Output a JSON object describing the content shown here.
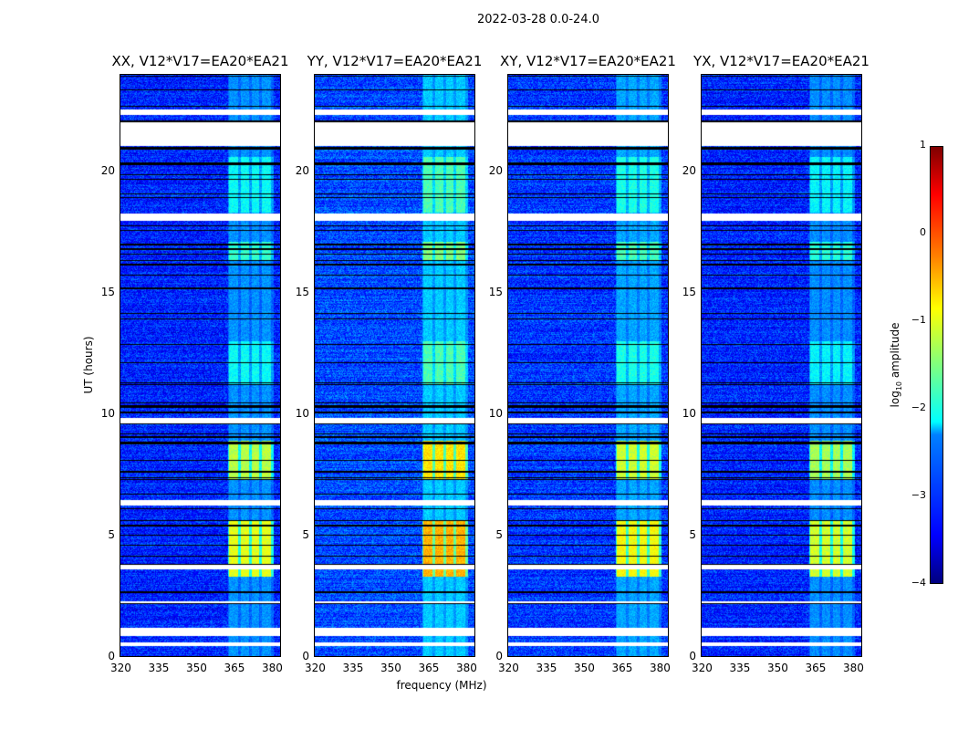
{
  "chart_data": {
    "type": "heatmap",
    "title": "2022-03-28 0.0-24.0",
    "xlabel": "frequency (MHz)",
    "ylabel": "UT (hours)",
    "xlim": [
      320,
      384
    ],
    "ylim": [
      0,
      24
    ],
    "xticks": [
      "320",
      "335",
      "350",
      "365",
      "380"
    ],
    "yticks": [
      "0",
      "5",
      "10",
      "15",
      "20"
    ],
    "colormap": "jet",
    "colorbar": {
      "label": "log",
      "label_sub": "10",
      "label_suffix": " amplitude",
      "range": [
        -4,
        1
      ],
      "ticks": [
        "1",
        "0",
        "−1",
        "−2",
        "−3",
        "−4"
      ]
    },
    "panels": [
      {
        "title": "XX, V12*V17=EA20*EA21",
        "background": -3.2,
        "band_peak": -1.0
      },
      {
        "title": "YY, V12*V17=EA20*EA21",
        "background": -3.0,
        "band_peak": -0.5
      },
      {
        "title": "XY, V12*V17=EA20*EA21",
        "background": -3.1,
        "band_peak": -0.9
      },
      {
        "title": "YX, V12*V17=EA20*EA21",
        "background": -3.2,
        "band_peak": -1.1
      }
    ],
    "flagged_hours": [
      [
        22.3,
        22.55
      ],
      [
        21.05,
        22.0
      ],
      [
        17.95,
        18.25
      ],
      [
        9.6,
        9.85
      ],
      [
        6.25,
        6.45
      ],
      [
        3.6,
        3.8
      ],
      [
        2.2,
        2.3
      ],
      [
        0.85,
        1.2
      ],
      [
        0.45,
        0.6
      ]
    ],
    "rfi_band_mhz": [
      363,
      381
    ],
    "rfi_subbands_mhz": [
      [
        363.5,
        367
      ],
      [
        368,
        371.5
      ],
      [
        372.5,
        375.5
      ],
      [
        376.5,
        380
      ]
    ],
    "rfi_active_hours": [
      [
        3.3,
        5.6,
        1.0
      ],
      [
        7.3,
        8.9,
        0.9
      ],
      [
        11.2,
        13.0,
        0.5
      ],
      [
        16.3,
        17.1,
        0.6
      ],
      [
        18.3,
        20.6,
        0.5
      ],
      [
        0,
        24,
        0.25
      ]
    ]
  }
}
